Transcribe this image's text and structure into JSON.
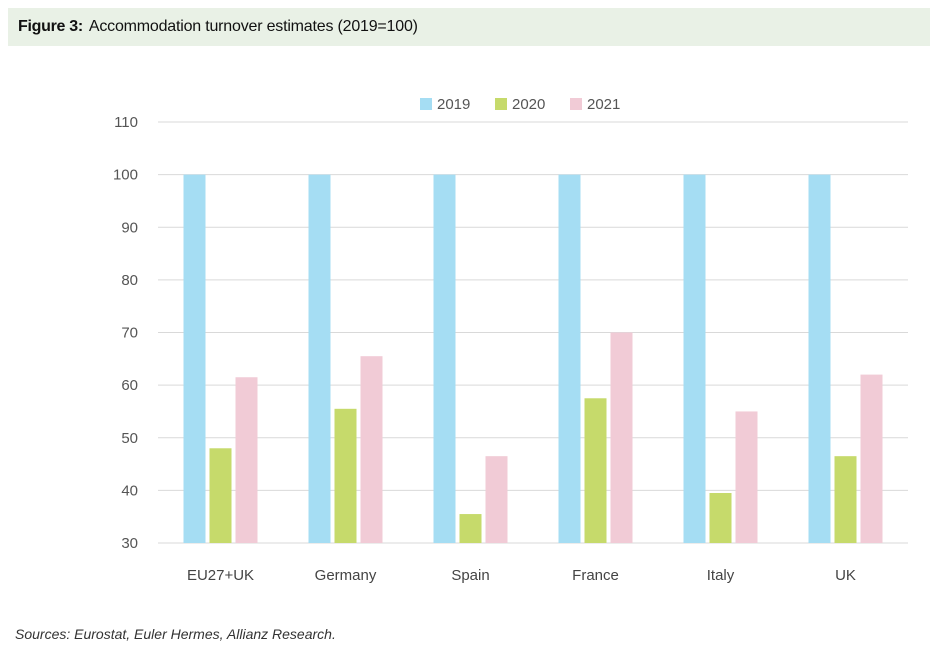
{
  "figure": {
    "label": "Figure 3:",
    "title": "Accommodation turnover estimates (2019=100)",
    "source": "Sources: Eurostat, Euler Hermes, Allianz Research."
  },
  "chart_data": {
    "type": "bar",
    "title": "Accommodation turnover estimates (2019=100)",
    "categories": [
      "EU27+UK",
      "Germany",
      "Spain",
      "France",
      "Italy",
      "UK"
    ],
    "series": [
      {
        "name": "2019",
        "color": "#a5ddf3",
        "values": [
          100,
          100,
          100,
          100,
          100,
          100
        ]
      },
      {
        "name": "2020",
        "color": "#c6da6b",
        "values": [
          48,
          55.5,
          35.5,
          57.5,
          39.5,
          46.5
        ]
      },
      {
        "name": "2021",
        "color": "#f1cbd6",
        "values": [
          61.5,
          65.5,
          46.5,
          70,
          55,
          62
        ]
      }
    ],
    "ylim": [
      30,
      110
    ],
    "yticks": [
      30,
      40,
      50,
      60,
      70,
      80,
      90,
      100,
      110
    ],
    "grid": true,
    "legend": "top-center"
  }
}
